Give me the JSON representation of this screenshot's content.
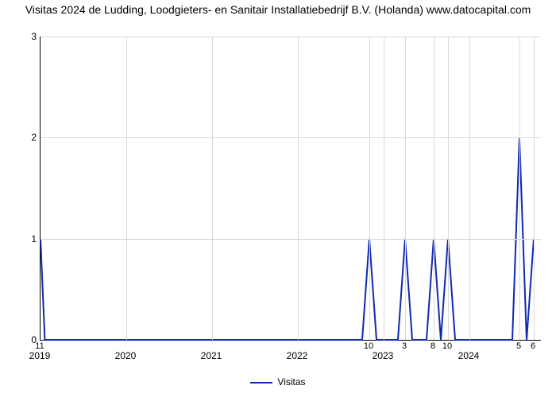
{
  "chart": {
    "type": "line",
    "title": "Visitas 2024 de Ludding, Loodgieters- en Sanitair Installatiebedrijf B.V. (Holanda) www.datocapital.com",
    "title_fontsize": 14,
    "background_color": "#ffffff",
    "grid_color": "#d9d9d9",
    "axis_color": "#000000",
    "line_color": "#1029b0",
    "line_width": 2,
    "y": {
      "min": 0,
      "max": 3,
      "ticks": [
        0,
        1,
        2,
        3
      ],
      "tick_fontsize": 12
    },
    "x": {
      "min": 0,
      "max": 70,
      "year_ticks": [
        {
          "month": "11",
          "year": "2019",
          "t": 0
        },
        {
          "month": "",
          "year": "2020",
          "t": 12
        },
        {
          "month": "",
          "year": "2021",
          "t": 24
        },
        {
          "month": "",
          "year": "2022",
          "t": 36
        },
        {
          "month": "",
          "year": "2023",
          "t": 48
        },
        {
          "month": "",
          "year": "2024",
          "t": 60
        }
      ],
      "month_only_ticks": [
        {
          "label": "10",
          "t": 46
        },
        {
          "label": "3",
          "t": 51
        },
        {
          "label": "8",
          "t": 55
        },
        {
          "label": "10",
          "t": 57
        },
        {
          "label": "5",
          "t": 67
        },
        {
          "label": "6",
          "t": 69
        }
      ]
    },
    "series": [
      {
        "name": "Visitas",
        "points": [
          [
            0,
            1
          ],
          [
            0.6,
            0
          ],
          [
            45,
            0
          ],
          [
            46,
            1
          ],
          [
            47,
            0
          ],
          [
            50,
            0
          ],
          [
            51,
            1
          ],
          [
            52,
            0
          ],
          [
            54,
            0
          ],
          [
            55,
            1
          ],
          [
            56,
            0
          ],
          [
            57,
            1
          ],
          [
            58,
            0
          ],
          [
            66,
            0
          ],
          [
            67,
            2
          ],
          [
            68,
            0
          ],
          [
            69,
            1
          ]
        ]
      }
    ],
    "legend": {
      "label": "Visitas",
      "fontsize": 12
    }
  }
}
